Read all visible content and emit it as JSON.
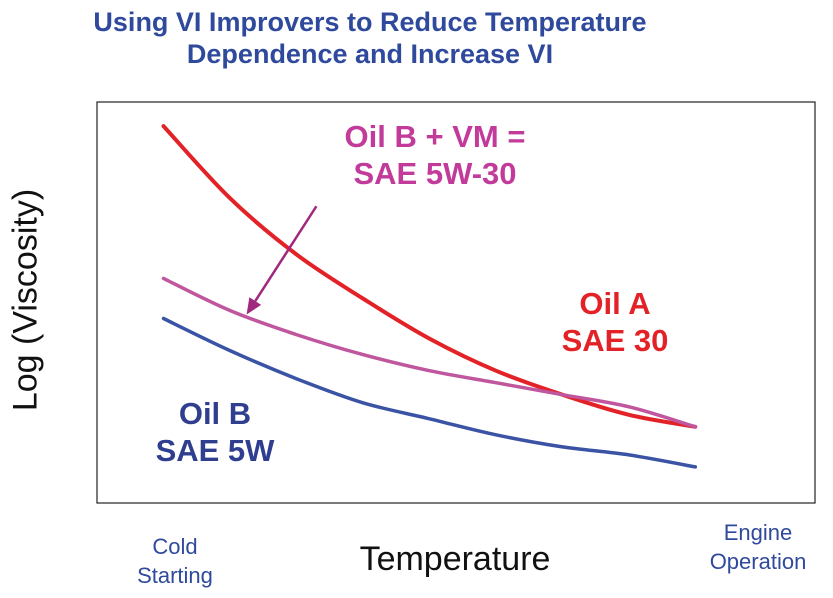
{
  "title_lines": [
    "Using VI Improvers to Reduce Temperature",
    "Dependence and Increase VI"
  ],
  "colors": {
    "title": "#2f4a9c",
    "oil_a": "#e32227",
    "oil_b_vm": "#c0569e",
    "oil_b": "#3a53a4"
  },
  "annotations": {
    "vm": [
      "Oil B + VM =",
      "SAE 5W-30"
    ],
    "oil_a": [
      "Oil A",
      "SAE 30"
    ],
    "oil_b": [
      "Oil B",
      "SAE 5W"
    ]
  },
  "x_tick_labels": {
    "left": [
      "Cold",
      "Starting"
    ],
    "right": [
      "Engine",
      "Operation"
    ]
  },
  "chart_data": {
    "type": "line",
    "title": "Using VI Improvers to Reduce Temperature Dependence and Increase VI",
    "xlabel": "Temperature",
    "ylabel": "Log (Viscosity)",
    "x_scale": "qualitative",
    "y_scale": "log",
    "grid": false,
    "legend": "none",
    "x": [
      0,
      1,
      2,
      3,
      4,
      5,
      6,
      7,
      8
    ],
    "x_range": [
      -1,
      9.8
    ],
    "y_range": [
      0,
      1
    ],
    "series": [
      {
        "name": "Oil A SAE 30",
        "color": "#e32227",
        "values": [
          0.94,
          0.76,
          0.62,
          0.51,
          0.41,
          0.33,
          0.27,
          0.22,
          0.19
        ]
      },
      {
        "name": "Oil B + VM = SAE 5W-30",
        "color": "#c0569e",
        "values": [
          0.56,
          0.48,
          0.42,
          0.37,
          0.33,
          0.3,
          0.27,
          0.24,
          0.19
        ]
      },
      {
        "name": "Oil B SAE 5W",
        "color": "#3a53a4",
        "values": [
          0.46,
          0.38,
          0.31,
          0.25,
          0.21,
          0.17,
          0.14,
          0.12,
          0.09
        ]
      }
    ],
    "arrow": {
      "label": "Oil B + VM = SAE 5W-30",
      "from": [
        2.3,
        0.74
      ],
      "to": [
        1.25,
        0.47
      ]
    }
  }
}
